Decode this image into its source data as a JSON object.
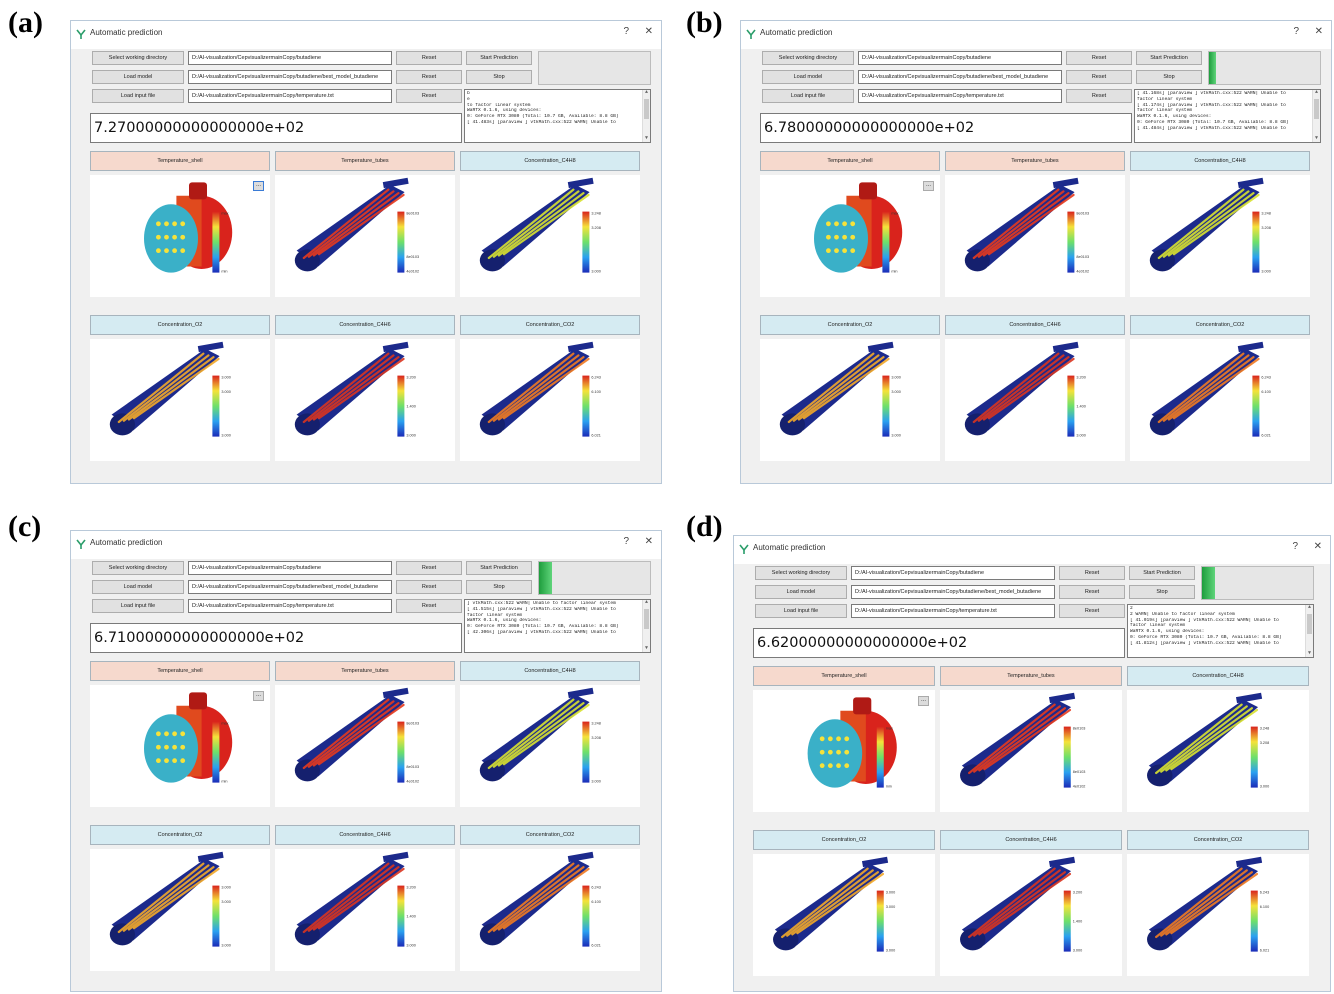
{
  "panels": [
    {
      "letter": "(a)",
      "window_title": "Automatic prediction",
      "help_label": "?",
      "close_label": "✕",
      "buttons": {
        "select_dir": "Select working directory",
        "load_model": "Load model",
        "load_input": "Load input file",
        "reset": "Reset",
        "start": "Start Prediction",
        "stop": "Stop"
      },
      "fields": {
        "working_dir": "D:/AI-visualization/CepvisualizermainCopy/butadiene",
        "model_path": "D:/AI-visualization/CepvisualizermainCopy/butadiene/best_model_butadiene",
        "input_path": "D:/AI-visualization/CepvisualizermainCopy/temperature.txt"
      },
      "progress_percent": 0,
      "result_value": "7.27000000000000000e+02",
      "log_lines": [
        "b",
        "",
        "e",
        " to factor linear system",
        "WaRTX 0.1.6, using devices:",
        "0: GeForce RTX 3080 (Total: 10.7 GB, Available: 8.8 GB)",
        "",
        "[ 41.483s] [paraview     ]     vtkMath.cxx:522   WARN| Unable to"
      ],
      "views": [
        "Temperature_shell",
        "Temperature_tubes",
        "Concentration_C4H8",
        "Concentration_O2",
        "Concentration_C4H6",
        "Concentration_CO2"
      ],
      "ellipsis_label": "...",
      "ellipsis_selected": true
    },
    {
      "letter": "(b)",
      "window_title": "Automatic prediction",
      "help_label": "?",
      "close_label": "✕",
      "buttons": {
        "select_dir": "Select working directory",
        "load_model": "Load model",
        "load_input": "Load input file",
        "reset": "Reset",
        "start": "Start Prediction",
        "stop": "Stop"
      },
      "fields": {
        "working_dir": "D:/AI-visualization/CepvisualizermainCopy/butadiene",
        "model_path": "D:/AI-visualization/CepvisualizermainCopy/butadiene/best_model_butadiene",
        "input_path": "D:/AI-visualization/CepvisualizermainCopy/temperature.txt"
      },
      "progress_percent": 6,
      "result_value": "6.78000000000000000e+02",
      "log_lines": [
        "[ 41.168s] [paraview     ]     vtkMath.cxx:522  WARN| Unable to",
        "factor linear system",
        "[ 41.174s] [paraview     ]     vtkMath.cxx:522  WARN| Unable to",
        "factor linear system",
        "WaRTX 0.1.6, using devices:",
        "0: GeForce RTX 3080 (Total: 10.7 GB, Available: 8.8 GB)",
        "",
        "[ 41.484s] [paraview     ]     vtkMath.cxx:522  WARN| Unable to"
      ],
      "views": [
        "Temperature_shell",
        "Temperature_tubes",
        "Concentration_C4H8",
        "Concentration_O2",
        "Concentration_C4H6",
        "Concentration_CO2"
      ],
      "ellipsis_label": "...",
      "ellipsis_selected": false
    },
    {
      "letter": "(c)",
      "window_title": "Automatic prediction",
      "help_label": "?",
      "close_label": "✕",
      "buttons": {
        "select_dir": "Select working directory",
        "load_model": "Load model",
        "load_input": "Load input file",
        "reset": "Reset",
        "start": "Start Prediction",
        "stop": "Stop"
      },
      "fields": {
        "working_dir": "D:/AI-visualization/CepvisualizermainCopy/butadiene",
        "model_path": "D:/AI-visualization/CepvisualizermainCopy/butadiene/best_model_butadiene",
        "input_path": "D:/AI-visualization/CepvisualizermainCopy/temperature.txt"
      },
      "progress_percent": 12,
      "result_value": "6.71000000000000000e+02",
      "log_lines": [
        "]     vtkMath.cxx:522   WARN| Unable to factor linear system",
        "[ 41.515s] [paraview     ]     vtkMath.cxx:522  WARN| Unable to",
        "factor linear system",
        "WaRTX 0.1.6, using devices:",
        "0: GeForce RTX 3080 (Total: 10.7 GB, Available: 8.8 GB)",
        "",
        "[ 42.306s] [paraview     ]     vtkMath.cxx:522  WARN| Unable to"
      ],
      "views": [
        "Temperature_shell",
        "Temperature_tubes",
        "Concentration_C4H8",
        "Concentration_O2",
        "Concentration_C4H6",
        "Concentration_CO2"
      ],
      "ellipsis_label": "...",
      "ellipsis_selected": false
    },
    {
      "letter": "(d)",
      "window_title": "Automatic prediction",
      "help_label": "?",
      "close_label": "✕",
      "buttons": {
        "select_dir": "Select working directory",
        "load_model": "Load model",
        "load_input": "Load input file",
        "reset": "Reset",
        "start": "Start Prediction",
        "stop": "Stop"
      },
      "fields": {
        "working_dir": "D:/AI-visualization/CepvisualizermainCopy/butadiene",
        "model_path": "D:/AI-visualization/CepvisualizermainCopy/butadiene/best_model_butadiene",
        "input_path": "D:/AI-visualization/CepvisualizermainCopy/temperature.txt"
      },
      "progress_percent": 12,
      "result_value": "6.62000000000000000e+02",
      "log_lines": [
        "2",
        "2  WARN| Unable to factor linear system",
        "[ 41.019s] [paraview     ]     vtkMath.cxx:522  WARN| Unable to",
        "factor linear system",
        "WaRTX 0.1.6, using devices:",
        "0: GeForce RTX 3080 (Total: 10.7 GB, Available: 8.8 GB)",
        "",
        "[ 41.812s] [paraview     ]     vtkMath.cxx:522  WARN| Unable to"
      ],
      "views": [
        "Temperature_shell",
        "Temperature_tubes",
        "Concentration_C4H8",
        "Concentration_O2",
        "Concentration_C4H6",
        "Concentration_CO2"
      ],
      "ellipsis_label": "...",
      "ellipsis_selected": false
    }
  ],
  "colorbar_labels": {
    "Temperature_shell": [
      "max",
      "",
      "",
      "",
      "min"
    ],
    "Temperature_tubes": [
      "8e0103",
      "",
      "",
      "8e0103",
      "4e0102"
    ],
    "Concentration_C4H8": [
      "3.248",
      "3.208",
      "",
      "",
      "3.000"
    ],
    "Concentration_O2": [
      "3.000",
      "3.000",
      "",
      "",
      "3.000"
    ],
    "Concentration_C4H6": [
      "3.200",
      "",
      "1.400",
      "",
      "3.000"
    ],
    "Concentration_CO2": [
      "6.243",
      "6.100",
      "",
      "",
      "6.021"
    ]
  },
  "colors": {
    "warm_header": "#f6d9cd",
    "cool_header": "#d5ebf2",
    "progress_green": "#1e9d3d"
  },
  "view_styles": [
    {
      "kind": "shell"
    },
    {
      "kind": "tubes",
      "stripe": "#e63a1e"
    },
    {
      "kind": "tubes",
      "stripe": "#d9e230"
    },
    {
      "kind": "tubes",
      "stripe": "#f2a92a"
    },
    {
      "kind": "tubes",
      "stripe": "#d93520"
    },
    {
      "kind": "tubes",
      "stripe": "#f07b22"
    }
  ]
}
